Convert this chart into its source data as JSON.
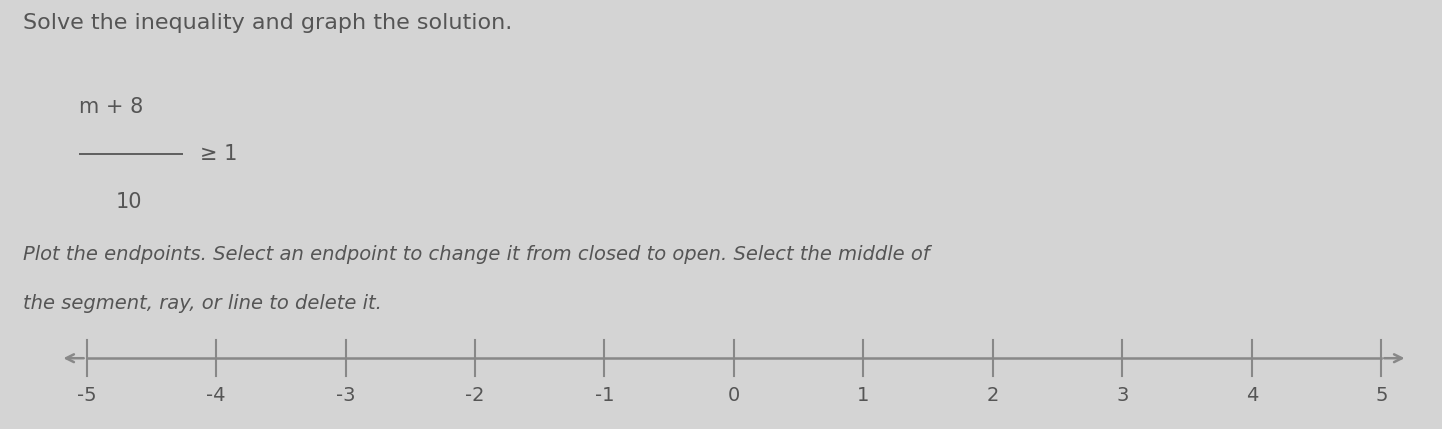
{
  "title_line1": "Solve the inequality and graph the solution.",
  "equation_numerator": "m + 8",
  "equation_denominator": "10",
  "equation_rhs": "≥ 1",
  "instruction_line1": "Plot the endpoints. Select an endpoint to change it from closed to open. Select the middle of",
  "instruction_line2": "the segment, ray, or line to delete it.",
  "tick_positions": [
    -5,
    -4,
    -3,
    -2,
    -1,
    0,
    1,
    2,
    3,
    4,
    5
  ],
  "tick_labels": [
    "-5",
    "-4",
    "-3",
    "-2",
    "-1",
    "0",
    "1",
    "2",
    "3",
    "4",
    "5"
  ],
  "background_color": "#d4d4d4",
  "axis_color": "#888888",
  "text_color": "#555555",
  "figsize": [
    14.42,
    4.29
  ],
  "dpi": 100,
  "title_fontsize": 16,
  "eq_fontsize": 15,
  "instr_fontsize": 14,
  "tick_fontsize": 14
}
